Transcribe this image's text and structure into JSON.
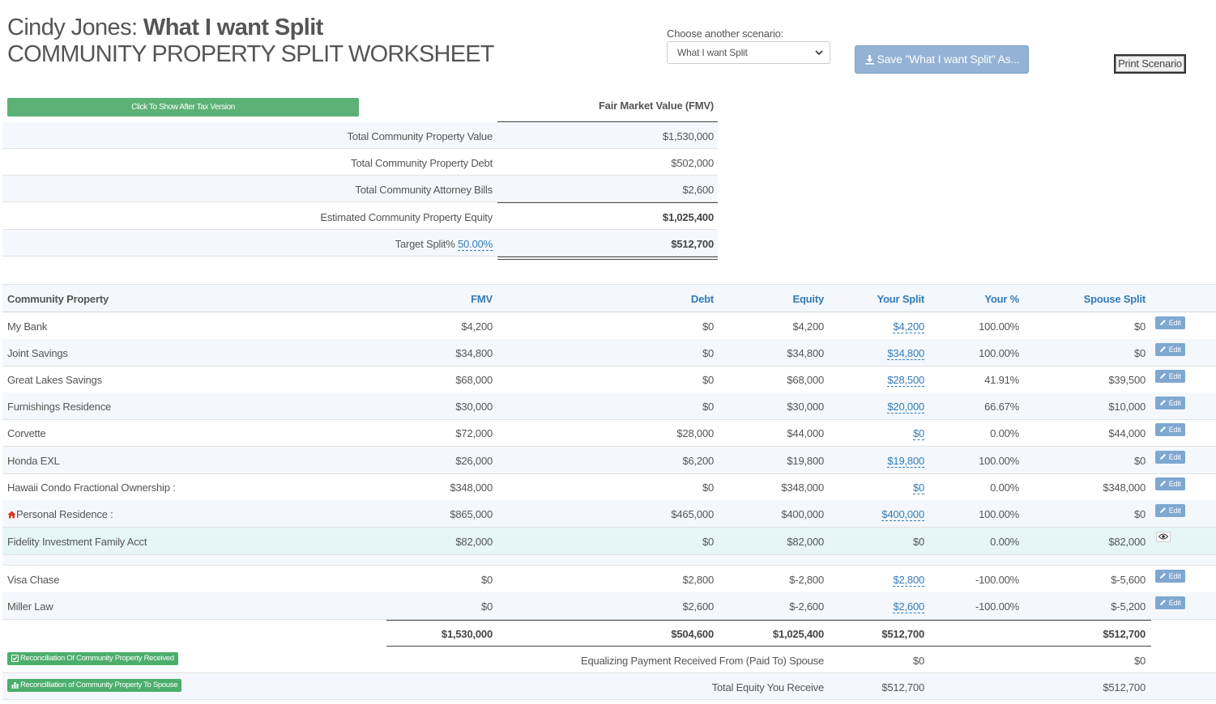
{
  "header": {
    "client_name": "Cindy Jones:",
    "scenario_name": "What I want Split",
    "subtitle": "COMMUNITY PROPERTY SPLIT WORKSHEET"
  },
  "scenario": {
    "label": "Choose another scenario:",
    "selected": "What I want Split"
  },
  "buttons": {
    "save": "Save \"What I want Split\" As...",
    "print": "Print Scenario",
    "after_tax": "Click To Show After Tax Version",
    "edit": "Edit"
  },
  "summary": {
    "header": "Fair Market Value (FMV)",
    "rows": [
      {
        "label": "Total Community Property Value",
        "value": "$1,530,000"
      },
      {
        "label": "Total Community Property Debt",
        "value": "$502,000"
      },
      {
        "label": "Total Community Attorney Bills",
        "value": "$2,600"
      },
      {
        "label": "Estimated Community Property Equity",
        "value": "$1,025,400"
      }
    ],
    "target_label": "Target Split%",
    "target_pct": "50.00%",
    "target_value": "$512,700"
  },
  "table": {
    "headers": {
      "name": "Community Property",
      "fmv": "FMV",
      "debt": "Debt",
      "equity": "Equity",
      "your_split": "Your Split",
      "your_pct": "Your %",
      "spouse_split": "Spouse Split"
    },
    "rows": [
      {
        "name": "My Bank",
        "fmv": "$4,200",
        "debt": "$0",
        "equity": "$4,200",
        "your_split": "$4,200",
        "your_pct": "100.00%",
        "spouse_split": "$0"
      },
      {
        "name": "Joint Savings",
        "fmv": "$34,800",
        "debt": "$0",
        "equity": "$34,800",
        "your_split": "$34,800",
        "your_pct": "100.00%",
        "spouse_split": "$0"
      },
      {
        "name": "Great Lakes Savings",
        "fmv": "$68,000",
        "debt": "$0",
        "equity": "$68,000",
        "your_split": "$28,500",
        "your_pct": "41.91%",
        "spouse_split": "$39,500"
      },
      {
        "name": "Furnishings Residence",
        "fmv": "$30,000",
        "debt": "$0",
        "equity": "$30,000",
        "your_split": "$20,000",
        "your_pct": "66.67%",
        "spouse_split": "$10,000"
      },
      {
        "name": "Corvette",
        "fmv": "$72,000",
        "debt": "$28,000",
        "equity": "$44,000",
        "your_split": "$0",
        "your_pct": "0.00%",
        "spouse_split": "$44,000"
      },
      {
        "name": "Honda EXL",
        "fmv": "$26,000",
        "debt": "$6,200",
        "equity": "$19,800",
        "your_split": "$19,800",
        "your_pct": "100.00%",
        "spouse_split": "$0"
      },
      {
        "name": "Hawaii Condo Fractional Ownership :",
        "fmv": "$348,000",
        "debt": "$0",
        "equity": "$348,000",
        "your_split": "$0",
        "your_pct": "0.00%",
        "spouse_split": "$348,000"
      },
      {
        "name": "Personal Residence :",
        "fmv": "$865,000",
        "debt": "$465,000",
        "equity": "$400,000",
        "your_split": "$400,000",
        "your_pct": "100.00%",
        "spouse_split": "$0"
      },
      {
        "name": "Fidelity Investment Family Acct",
        "fmv": "$82,000",
        "debt": "$0",
        "equity": "$82,000",
        "your_split": "$0",
        "your_pct": "0.00%",
        "spouse_split": "$82,000"
      },
      {
        "name": "Visa Chase",
        "fmv": "$0",
        "debt": "$2,800",
        "equity": "$-2,800",
        "your_split": "$2,800",
        "your_pct": "-100.00%",
        "spouse_split": "$-5,600"
      },
      {
        "name": "Miller Law",
        "fmv": "$0",
        "debt": "$2,600",
        "equity": "$-2,600",
        "your_split": "$2,600",
        "your_pct": "-100.00%",
        "spouse_split": "$-5,200"
      }
    ],
    "totals": {
      "fmv": "$1,530,000",
      "debt": "$504,600",
      "equity": "$1,025,400",
      "your_split": "$512,700",
      "spouse_split": "$512,700"
    }
  },
  "reconciliation": {
    "received_badge": "Reconciliation Of Community Property Received",
    "to_spouse_badge": "Reconcilliation of Community Property To Spouse",
    "equalizing_label": "Equalizing Payment Received From (Paid To) Spouse",
    "equalizing_you": "$0",
    "equalizing_spouse": "$0",
    "total_label": "Total Equity You Receive",
    "total_you": "$512,700",
    "total_spouse": "$512,700"
  },
  "colors": {
    "link": "#337ab7",
    "green": "#5cb176",
    "save_button": "#93b2d4",
    "row_shade": "#f4f8fc",
    "row_highlight": "#e6f6f7"
  }
}
